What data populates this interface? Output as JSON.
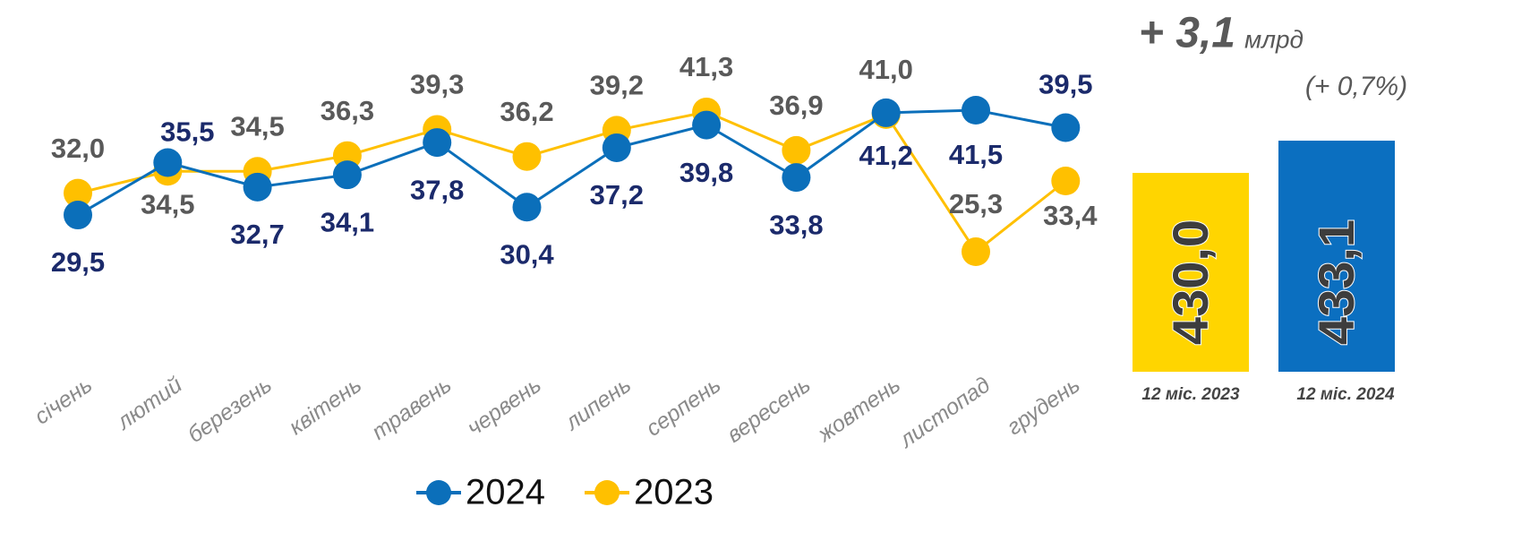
{
  "chart_data": [
    {
      "type": "line",
      "categories": [
        "січень",
        "лютий",
        "березень",
        "квітень",
        "травень",
        "червень",
        "липень",
        "серпень",
        "вересень",
        "жовтень",
        "листопад",
        "грудень"
      ],
      "series": [
        {
          "name": "2024",
          "color": "#0b6fba",
          "values": [
            29.5,
            35.5,
            32.7,
            34.1,
            37.8,
            30.4,
            37.2,
            39.8,
            33.8,
            41.2,
            41.5,
            39.5
          ],
          "value_labels": [
            "29,5",
            "35,5",
            "32,7",
            "34,1",
            "37,8",
            "30,4",
            "37,2",
            "39,8",
            "33,8",
            "41,2",
            "41,5",
            "39,5"
          ]
        },
        {
          "name": "2023",
          "color": "#ffc000",
          "values": [
            32.0,
            34.5,
            34.5,
            36.3,
            39.3,
            36.2,
            39.2,
            41.3,
            36.9,
            41.0,
            25.3,
            33.4
          ],
          "value_labels": [
            "32,0",
            "34,5",
            "34,5",
            "36,3",
            "39,3",
            "36,2",
            "39,2",
            "41,3",
            "36,9",
            "41,0",
            "25,3",
            "33,4"
          ]
        }
      ],
      "legend": "bottom"
    },
    {
      "type": "bar",
      "annotations": [
        "+ 3,1",
        "млрд",
        "(+ 0,7%)"
      ],
      "categories": [
        "12 міс. 2023",
        "12 міс. 2024"
      ],
      "values": [
        430.0,
        433.1
      ],
      "value_labels": [
        "430,0",
        "433,1"
      ],
      "colors": [
        "#ffd500",
        "#0b6fc0"
      ]
    }
  ]
}
